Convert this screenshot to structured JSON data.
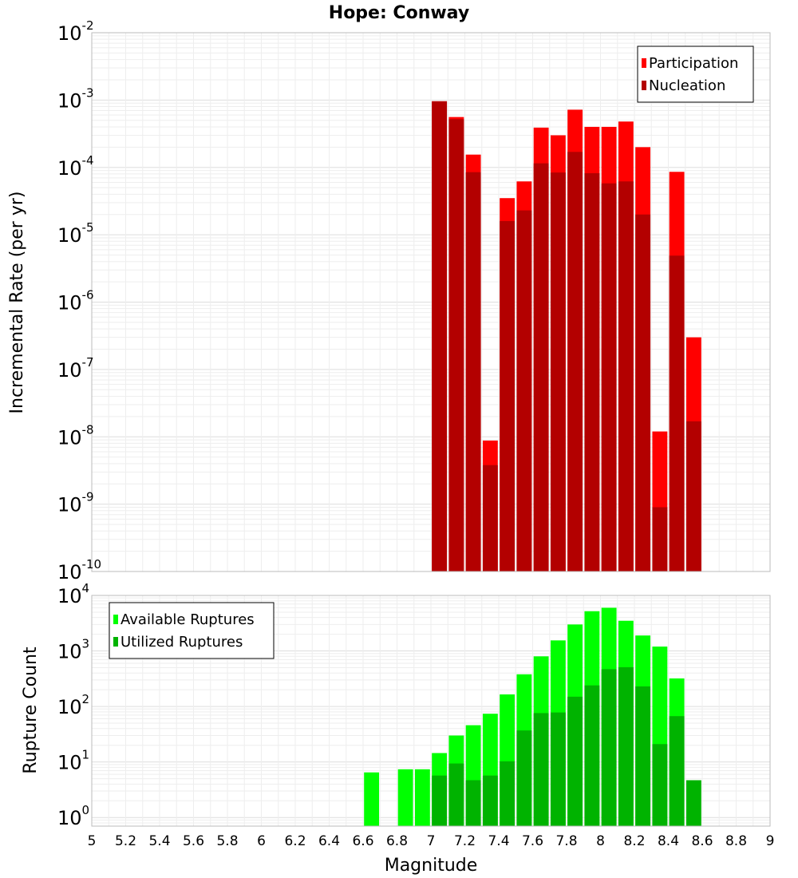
{
  "title": "Hope: Conway",
  "colors": {
    "participation": "#ff0000",
    "nucleation": "#b30000",
    "available": "#00ff00",
    "utilized": "#00b300",
    "grid": "#e8e8e8",
    "border": "#bbbbbb"
  },
  "x_tick_labels": [
    "5",
    "5.2",
    "5.4",
    "5.6",
    "5.8",
    "6",
    "6.2",
    "6.4",
    "6.6",
    "6.8",
    "7",
    "7.2",
    "7.4",
    "7.6",
    "7.8",
    "8",
    "8.2",
    "8.4",
    "8.6",
    "8.8",
    "9"
  ],
  "chart_data": [
    {
      "type": "bar",
      "scale": "log",
      "xlabel": "Magnitude",
      "ylabel": "Incremental Rate (per yr)",
      "xlim": [
        5,
        9
      ],
      "ylim": [
        1e-10,
        0.01
      ],
      "y_tick_exponents": [
        "-10",
        "-9",
        "-8",
        "-7",
        "-6",
        "-5",
        "-4",
        "-3",
        "-2"
      ],
      "bin_width": 0.1,
      "legend_position": "top-right",
      "x": [
        7.05,
        7.15,
        7.25,
        7.35,
        7.45,
        7.55,
        7.65,
        7.75,
        7.85,
        7.95,
        8.05,
        8.15,
        8.25,
        8.35,
        8.45,
        8.55
      ],
      "series": [
        {
          "name": "Participation",
          "color_key": "participation",
          "values": [
            0.00096,
            0.00056,
            0.000155,
            8.8e-09,
            3.5e-05,
            6.2e-05,
            0.00039,
            0.0003,
            0.00072,
            0.0004,
            0.0004,
            0.00048,
            0.0002,
            1.2e-08,
            8.6e-05,
            3e-07
          ]
        },
        {
          "name": "Nucleation",
          "color_key": "nucleation",
          "values": [
            0.00096,
            0.00052,
            8.5e-05,
            3.8e-09,
            1.6e-05,
            2.3e-05,
            0.000115,
            8.4e-05,
            0.00017,
            8.2e-05,
            5.8e-05,
            6.2e-05,
            2e-05,
            9e-10,
            4.9e-06,
            1.7e-08
          ]
        }
      ]
    },
    {
      "type": "bar",
      "scale": "log",
      "xlabel": "Magnitude",
      "ylabel": "Rupture Count",
      "xlim": [
        5,
        9
      ],
      "ylim": [
        0.7,
        10000
      ],
      "y_tick_exponents": [
        "0",
        "1",
        "2",
        "3",
        "4"
      ],
      "bin_width": 0.1,
      "legend_position": "top-left",
      "x": [
        6.65,
        6.85,
        6.95,
        7.05,
        7.15,
        7.25,
        7.35,
        7.45,
        7.55,
        7.65,
        7.75,
        7.85,
        7.95,
        8.05,
        8.15,
        8.25,
        8.35,
        8.45,
        8.55
      ],
      "series": [
        {
          "name": "Available Ruptures",
          "color_key": "available",
          "values": [
            6.5,
            7.4,
            7.4,
            14.5,
            30,
            46,
            74,
            165,
            380,
            800,
            1550,
            3000,
            5200,
            6000,
            3500,
            1900,
            1200,
            320,
            0
          ]
        },
        {
          "name": "Utilized Ruptures",
          "color_key": "utilized",
          "values": [
            0,
            0,
            0,
            5.7,
            9.4,
            4.7,
            5.7,
            10.3,
            37,
            76,
            78,
            150,
            240,
            470,
            510,
            230,
            21,
            67,
            4.7
          ]
        }
      ]
    }
  ]
}
